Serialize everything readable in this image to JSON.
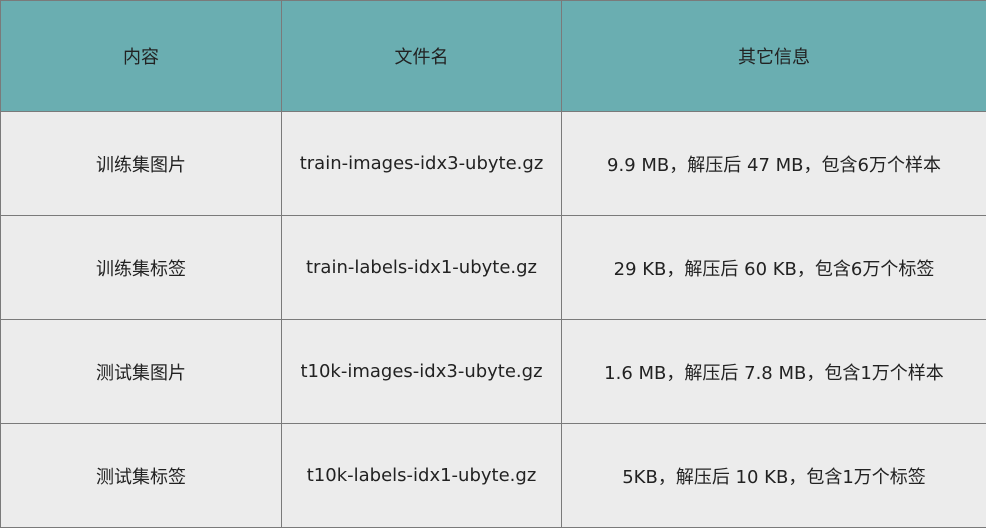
{
  "table": {
    "header": [
      "内容",
      "文件名",
      "其它信息"
    ],
    "rows": [
      [
        "训练集图片",
        "train-images-idx3-ubyte.gz",
        "9.9 MB，解压后 47 MB，包含6万个样本"
      ],
      [
        "训练集标签",
        "train-labels-idx1-ubyte.gz",
        "29 KB，解压后 60 KB，包含6万个标签"
      ],
      [
        "测试集图片",
        "t10k-images-idx3-ubyte.gz",
        "1.6 MB，解压后 7.8 MB，包含1万个样本"
      ],
      [
        "测试集标签",
        "t10k-labels-idx1-ubyte.gz",
        "5KB，解压后 10 KB，包含1万个标签"
      ]
    ]
  }
}
